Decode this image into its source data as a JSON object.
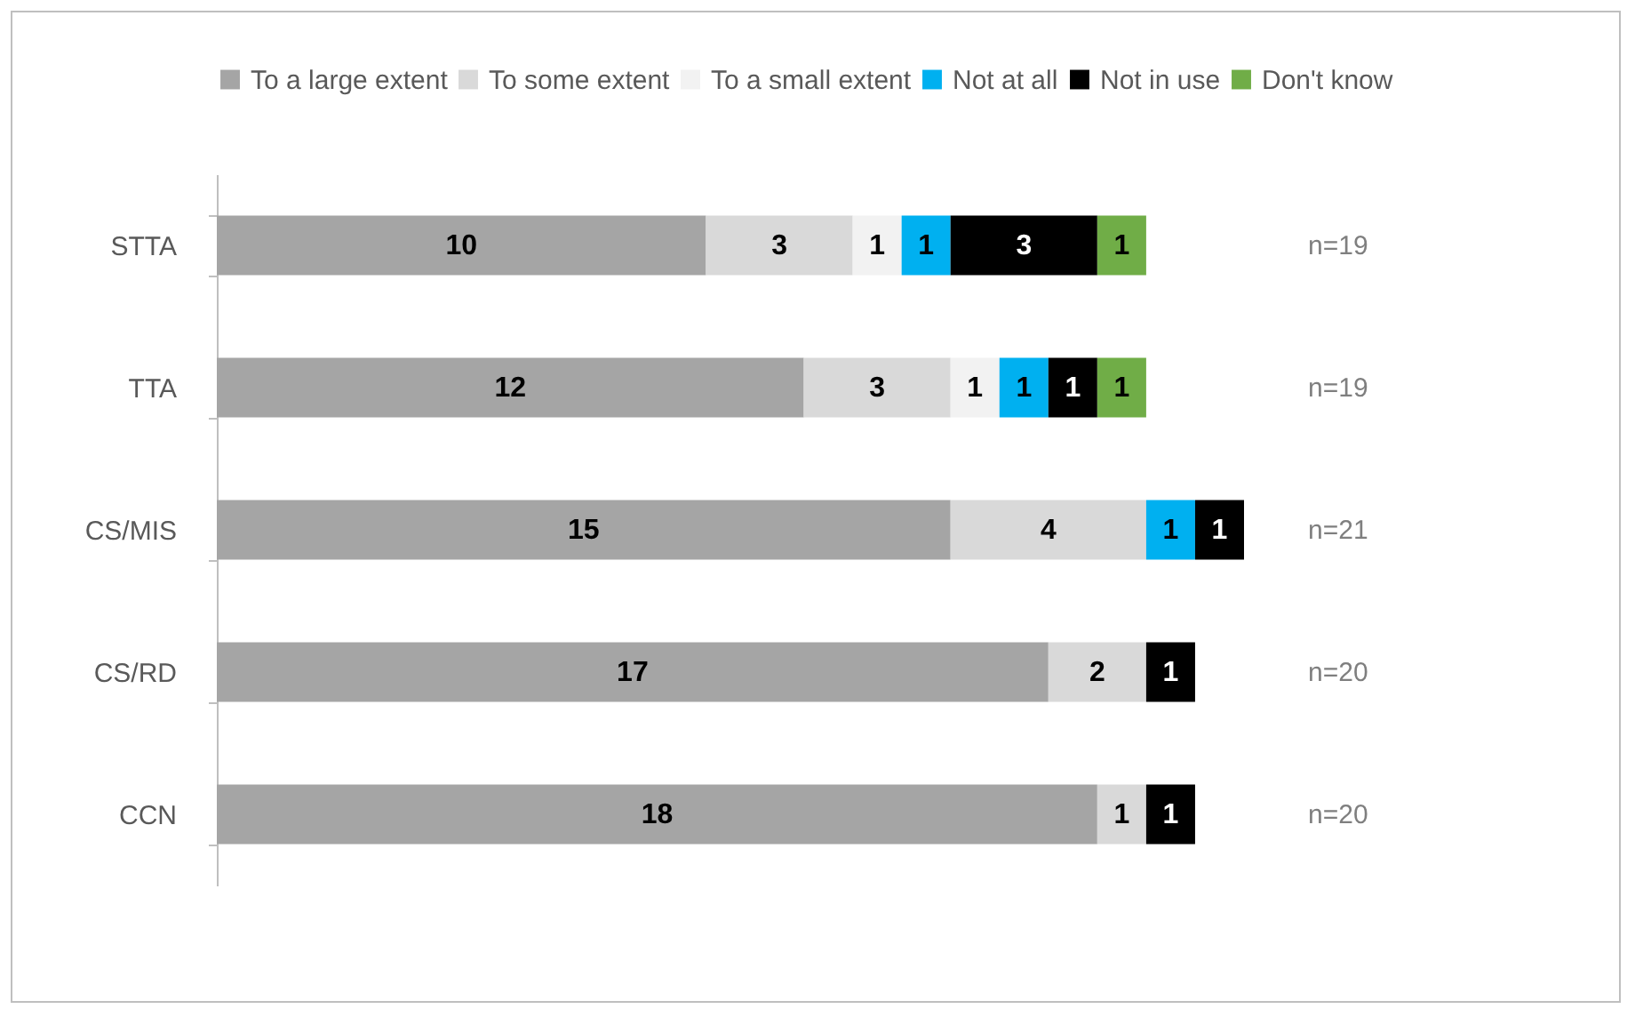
{
  "chart_data": {
    "type": "bar",
    "orientation": "horizontal",
    "stacked": true,
    "data_labels": true,
    "legend": "top",
    "categories": [
      "STTA",
      "TTA",
      "CS/MIS",
      "CS/RD",
      "CCN"
    ],
    "series": [
      {
        "name": "To a large extent",
        "color": "#a5a5a5",
        "values": [
          10,
          12,
          15,
          17,
          18
        ]
      },
      {
        "name": "To some extent",
        "color": "#d9d9d9",
        "values": [
          3,
          3,
          4,
          2,
          1
        ]
      },
      {
        "name": "To a small extent",
        "color": "#f2f2f2",
        "values": [
          1,
          1,
          null,
          null,
          null
        ]
      },
      {
        "name": "Not at all",
        "color": "#00b0f0",
        "values": [
          1,
          1,
          1,
          null,
          null
        ]
      },
      {
        "name": "Not in use",
        "color": "#000000",
        "values": [
          3,
          1,
          1,
          1,
          1
        ]
      },
      {
        "name": "Don't know",
        "color": "#70ad47",
        "values": [
          1,
          1,
          null,
          null,
          null
        ]
      }
    ],
    "tick_labels": "y",
    "annotations": [
      "n=19",
      "n=19",
      "n=21",
      "n=20",
      "n=20"
    ]
  }
}
